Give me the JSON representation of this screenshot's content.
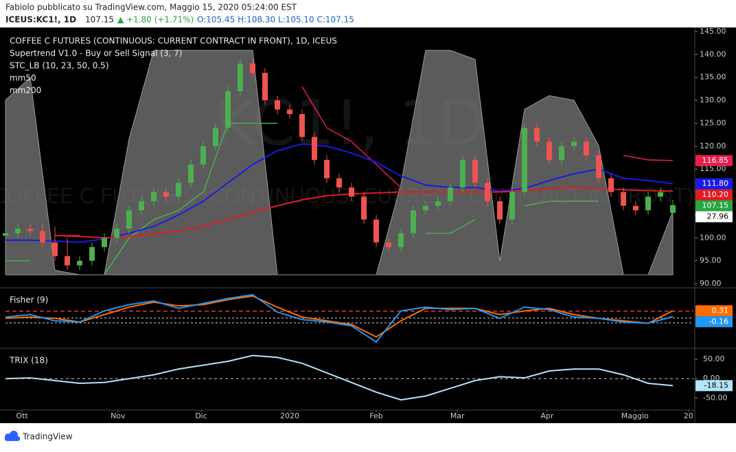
{
  "header": {
    "author_line": "Fabiolo pubblicato su TradingView.com, Maggio 15, 2020 05:24:00 EST",
    "symbol": "ICEUS:KC1!, 1D",
    "last": "107.15",
    "change": "▲ +1.80 (+1.71%)",
    "ohlc": "O:105.45 H:108.30 L:105.10 C:107.15"
  },
  "watermark": {
    "symbol": "KC1!, 1D",
    "description": "COFFEE C FUTURES (CONTINUOUS: CURRENT CONTRACT IN FRONT)"
  },
  "footer": {
    "brand": "TradingView"
  },
  "chart_data": [
    {
      "type": "candlestick",
      "title": "COFFEE C FUTURES (CONTINUOUS: CURRENT CONTRACT IN FRONT), 1D, ICEUS",
      "xlim": [
        0,
        167
      ],
      "xticks": [
        {
          "value": 4,
          "label": "Ott"
        },
        {
          "value": 27.3,
          "label": "Nov"
        },
        {
          "value": 47.5,
          "label": "Dic"
        },
        {
          "value": 69,
          "label": "2020"
        },
        {
          "value": 90,
          "label": "Feb"
        },
        {
          "value": 109.7,
          "label": "Mar"
        },
        {
          "value": 131.5,
          "label": "Apr"
        },
        {
          "value": 152.8,
          "label": "Maggio"
        },
        {
          "value": 165.8,
          "label": "20"
        }
      ],
      "ylim": [
        90,
        145
      ],
      "yticks": [
        {
          "value": 145,
          "label": "145.00"
        },
        {
          "value": 140,
          "label": "140.00"
        },
        {
          "value": 135,
          "label": "135.00"
        },
        {
          "value": 130,
          "label": "130.00"
        },
        {
          "value": 125,
          "label": "125.00"
        },
        {
          "value": 120,
          "label": "120.00"
        },
        {
          "value": 115,
          "label": "115.00"
        },
        {
          "value": 110,
          "label": "110.00"
        },
        {
          "value": 105,
          "label": "105.00"
        },
        {
          "value": 100,
          "label": "100.00"
        },
        {
          "value": 95,
          "label": "95.00"
        },
        {
          "value": 90,
          "label": "90.00"
        }
      ],
      "up_color": "#4caf50",
      "down_color": "#ef5350",
      "x": [
        0,
        3,
        6,
        9,
        12,
        15,
        18,
        21,
        24,
        27,
        30,
        33,
        36,
        39,
        42,
        45,
        48,
        51,
        54,
        57,
        60,
        63,
        66,
        69,
        72,
        75,
        78,
        81,
        84,
        87,
        90,
        93,
        96,
        99,
        102,
        105,
        108,
        111,
        114,
        117,
        120,
        123,
        126,
        129,
        132,
        135,
        138,
        141,
        144,
        147,
        150,
        153,
        156,
        159,
        162
      ],
      "open": [
        100.5,
        101,
        102,
        101.5,
        99,
        96,
        94,
        95,
        98,
        100,
        102,
        106,
        108,
        110,
        109,
        112,
        116,
        120,
        124,
        132,
        138,
        136,
        130,
        128,
        127,
        122,
        117,
        113,
        111,
        109,
        104,
        99,
        98,
        101,
        106,
        107,
        108,
        111,
        117,
        112,
        108,
        104,
        110,
        124,
        121,
        117,
        120,
        121,
        118,
        113,
        110,
        107,
        106,
        109,
        105.45
      ],
      "high": [
        102,
        103,
        103,
        103,
        102.5,
        100,
        96,
        99,
        101,
        103,
        107,
        109,
        111,
        111,
        113,
        117,
        121,
        125,
        133,
        139,
        139,
        137,
        131,
        129,
        128,
        123,
        118,
        114,
        112,
        110,
        105,
        100,
        102,
        107,
        108,
        109,
        112,
        118,
        118,
        113,
        109,
        111,
        125,
        125,
        122,
        121,
        122,
        122,
        119,
        114,
        111,
        108,
        110,
        111,
        108.3
      ],
      "low": [
        99.5,
        100,
        100.5,
        98,
        95,
        93,
        93,
        94,
        97,
        99,
        101,
        105,
        107,
        108,
        108,
        111,
        115,
        119,
        123,
        131,
        135,
        129,
        127,
        126,
        121,
        116,
        112,
        110,
        108,
        103,
        98,
        97,
        97,
        100,
        105,
        106,
        107,
        110,
        111,
        107,
        103,
        103,
        109,
        120,
        116,
        116,
        119,
        117,
        112,
        109,
        106,
        105,
        105,
        108,
        105.1
      ],
      "close": [
        101,
        102,
        101.5,
        99,
        96,
        94,
        95,
        98,
        100,
        102,
        106,
        108,
        110,
        109,
        112,
        116,
        120,
        124,
        132,
        138,
        136,
        130,
        128,
        127,
        122,
        117,
        113,
        111,
        109,
        104,
        99,
        98,
        101,
        106,
        107,
        108,
        111,
        117,
        112,
        108,
        104,
        110,
        124,
        121,
        117,
        120,
        121,
        118,
        113,
        110,
        107,
        106,
        109,
        110,
        107.15
      ],
      "close_tag_color": "#26a641",
      "overlays": [
        {
          "type": "trend",
          "name": "Supertrend V1.0 - Buy or Sell Signal (3, 7)",
          "up_color": "#4caf50",
          "down_color": "#e91e4d",
          "x": [
            0,
            6,
            12,
            18,
            24,
            30,
            36,
            42,
            48,
            54,
            60,
            66,
            72,
            78,
            84,
            90,
            96,
            102,
            108,
            114,
            120,
            126,
            132,
            138,
            144,
            150,
            156,
            162
          ],
          "up": [
            95,
            95,
            null,
            null,
            92,
            100,
            104,
            106,
            110,
            125,
            125,
            125,
            null,
            null,
            null,
            null,
            null,
            101,
            101,
            104,
            null,
            107,
            108,
            108,
            108,
            null,
            null,
            null
          ],
          "down": [
            null,
            null,
            100.5,
            100.5,
            null,
            null,
            null,
            null,
            null,
            null,
            null,
            null,
            133,
            124,
            121,
            116,
            111,
            null,
            null,
            null,
            116,
            null,
            null,
            null,
            null,
            118,
            117,
            116.85
          ]
        },
        {
          "type": "area",
          "name": "STC_LB (10, 23, 50, 0.5)",
          "color": "#7a7a7a",
          "ylim": [
            0,
            100
          ],
          "x": [
            0,
            6,
            12,
            18,
            24,
            30,
            36,
            42,
            48,
            54,
            60,
            66,
            72,
            78,
            84,
            90,
            96,
            102,
            108,
            114,
            120,
            126,
            132,
            138,
            144,
            150,
            156,
            162
          ],
          "values": [
            77,
            87,
            2,
            0,
            0,
            60,
            99,
            99,
            99,
            99,
            99,
            0,
            0,
            0,
            0,
            0,
            40,
            99,
            99,
            95,
            6,
            73,
            79,
            77,
            57,
            0,
            0,
            27.96
          ]
        },
        {
          "type": "line",
          "name": "mm50",
          "color": "#1a1ae6",
          "x": [
            0,
            6,
            12,
            18,
            24,
            30,
            36,
            42,
            48,
            54,
            60,
            66,
            72,
            78,
            84,
            90,
            96,
            102,
            108,
            114,
            120,
            126,
            132,
            138,
            144,
            150,
            156,
            162
          ],
          "values": [
            99.5,
            99.5,
            99.3,
            99,
            99.8,
            101,
            102.5,
            105,
            108,
            112,
            116,
            119,
            120.5,
            120,
            118.5,
            116.5,
            113.5,
            111.5,
            111,
            111,
            110.2,
            110.8,
            112.5,
            114,
            115,
            113,
            112.5,
            111.8
          ],
          "value_labels": [
            null,
            null,
            null,
            null,
            null,
            null,
            null,
            null,
            null,
            null,
            null,
            null,
            null,
            null,
            null,
            null,
            null,
            null,
            null,
            null,
            null,
            null,
            null,
            null,
            null,
            null,
            null,
            "111.80"
          ]
        },
        {
          "type": "line",
          "name": "mm200",
          "color": "#e01b22",
          "x": [
            0,
            6,
            12,
            18,
            24,
            30,
            36,
            42,
            48,
            54,
            60,
            66,
            72,
            78,
            84,
            90,
            96,
            102,
            108,
            114,
            120,
            126,
            132,
            138,
            144,
            150,
            156,
            162
          ],
          "values": [
            null,
            null,
            100.5,
            100.3,
            100,
            100.3,
            100.8,
            101.5,
            102.5,
            104,
            105.5,
            107,
            108.3,
            109.2,
            109.6,
            109.8,
            110,
            110,
            110,
            110,
            110,
            110.3,
            110.8,
            111,
            110.8,
            110.5,
            110.3,
            110.2
          ],
          "value_labels": [
            null,
            null,
            null,
            null,
            null,
            null,
            null,
            null,
            null,
            null,
            null,
            null,
            null,
            null,
            null,
            null,
            null,
            null,
            null,
            null,
            null,
            null,
            null,
            null,
            null,
            null,
            null,
            "110.20"
          ]
        }
      ]
    },
    {
      "type": "line",
      "title": "Fisher (9)",
      "ylim": [
        -2.6,
        2.1
      ],
      "series": [
        {
          "color": "#ff6d00",
          "x": [
            0,
            6,
            12,
            18,
            24,
            30,
            36,
            42,
            48,
            54,
            60,
            66,
            72,
            78,
            84,
            90,
            96,
            102,
            108,
            114,
            120,
            126,
            132,
            138,
            144,
            150,
            156,
            162
          ],
          "values": [
            -0.3,
            -0.2,
            -0.3,
            -0.6,
            0,
            0.6,
            1,
            0.7,
            0.8,
            1.2,
            1.5,
            0.6,
            -0.2,
            -0.5,
            -0.8,
            -1.8,
            -0.5,
            0.5,
            0.5,
            0.5,
            0,
            0.3,
            0.5,
            0,
            -0.3,
            -0.5,
            -0.7,
            0.31
          ]
        },
        {
          "color": "#2196f3",
          "x": [
            0,
            6,
            12,
            18,
            24,
            30,
            36,
            42,
            48,
            54,
            60,
            66,
            72,
            78,
            84,
            90,
            96,
            102,
            108,
            114,
            120,
            126,
            132,
            138,
            144,
            150,
            156,
            162
          ],
          "values": [
            -0.2,
            0,
            -0.5,
            -0.6,
            0.3,
            0.8,
            1.1,
            0.5,
            0.9,
            1.3,
            1.6,
            0.2,
            -0.4,
            -0.6,
            -0.9,
            -2.2,
            0.3,
            0.6,
            0.4,
            0.5,
            -0.3,
            0.6,
            0.4,
            -0.2,
            -0.3,
            -0.6,
            -0.7,
            -0.16
          ]
        }
      ]
    },
    {
      "type": "line",
      "title": "TRIX (18)",
      "ylim": [
        -78,
        77
      ],
      "yticks": [
        {
          "value": 50,
          "label": "50.00"
        },
        {
          "value": 0,
          "label": "0.00"
        },
        {
          "value": -50,
          "label": "-50.00"
        }
      ],
      "series": [
        {
          "color": "#b3e5fc",
          "x": [
            0,
            6,
            12,
            18,
            24,
            30,
            36,
            42,
            48,
            54,
            60,
            66,
            72,
            78,
            84,
            90,
            96,
            102,
            108,
            114,
            120,
            126,
            132,
            138,
            144,
            150,
            156,
            162
          ],
          "values": [
            0,
            2,
            -5,
            -12,
            -10,
            0,
            10,
            25,
            35,
            45,
            60,
            55,
            40,
            15,
            -10,
            -35,
            -55,
            -45,
            -25,
            -5,
            5,
            2,
            20,
            25,
            25,
            10,
            -12,
            -18.15
          ]
        }
      ]
    }
  ]
}
